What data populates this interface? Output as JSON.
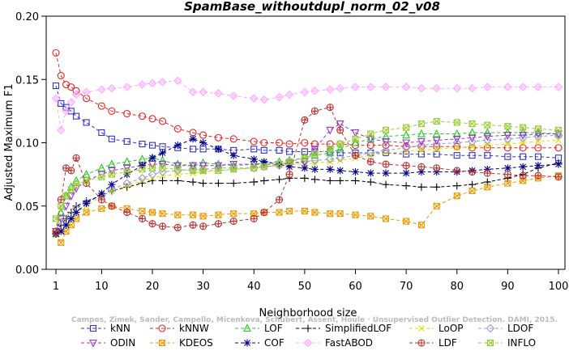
{
  "chart_data": {
    "type": "line",
    "title": "SpamBase_withoutdupl_norm_02_v08",
    "xlabel": "Neighborhood size",
    "ylabel": "Adjusted Maximum F1",
    "xlim": [
      1,
      100
    ],
    "ylim": [
      0,
      0.2
    ],
    "x_ticks": [
      1,
      10,
      20,
      30,
      40,
      50,
      60,
      70,
      80,
      90,
      100
    ],
    "y_ticks": [
      "0.00",
      "0.05",
      "0.10",
      "0.15",
      "0.20"
    ],
    "grid": false,
    "legend_position": "bottom",
    "watermark": "Campos, Zimek, Sander, Campello, Micenkova, Schubert, Assent, Houle · Unsupervised Outlier Detection. DAMI, 2015.",
    "x_samples": [
      1,
      2,
      3,
      4,
      5,
      7,
      10,
      12,
      15,
      18,
      20,
      22,
      25,
      28,
      30,
      33,
      36,
      40,
      42,
      45,
      47,
      50,
      52,
      55,
      57,
      60,
      63,
      66,
      70,
      73,
      76,
      80,
      83,
      86,
      90,
      93,
      96,
      100
    ],
    "series": [
      {
        "name": "kNN",
        "color": "#3333cc",
        "marker": "square",
        "values": [
          0.145,
          0.131,
          0.128,
          0.125,
          0.121,
          0.116,
          0.108,
          0.103,
          0.101,
          0.099,
          0.098,
          0.097,
          0.096,
          0.095,
          0.095,
          0.095,
          0.094,
          0.095,
          0.094,
          0.094,
          0.093,
          0.093,
          0.093,
          0.093,
          0.092,
          0.092,
          0.092,
          0.092,
          0.091,
          0.091,
          0.091,
          0.09,
          0.09,
          0.09,
          0.089,
          0.089,
          0.089,
          0.088
        ]
      },
      {
        "name": "kNNW",
        "color": "#ee2222",
        "marker": "circle",
        "values": [
          0.171,
          0.153,
          0.146,
          0.144,
          0.141,
          0.135,
          0.129,
          0.125,
          0.123,
          0.121,
          0.119,
          0.117,
          0.111,
          0.108,
          0.106,
          0.104,
          0.103,
          0.101,
          0.1,
          0.1,
          0.099,
          0.1,
          0.099,
          0.099,
          0.099,
          0.098,
          0.098,
          0.098,
          0.097,
          0.097,
          0.097,
          0.097,
          0.096,
          0.096,
          0.096,
          0.096,
          0.096,
          0.096
        ]
      },
      {
        "name": "LOF",
        "color": "#22cc22",
        "marker": "triangle-up",
        "values": [
          0.028,
          0.045,
          0.058,
          0.065,
          0.07,
          0.075,
          0.08,
          0.083,
          0.085,
          0.087,
          0.088,
          0.086,
          0.083,
          0.082,
          0.084,
          0.083,
          0.082,
          0.083,
          0.084,
          0.085,
          0.086,
          0.088,
          0.09,
          0.092,
          0.095,
          0.1,
          0.103,
          0.105,
          0.106,
          0.107,
          0.107,
          0.107,
          0.108,
          0.108,
          0.108,
          0.108,
          0.108,
          0.107
        ]
      },
      {
        "name": "SimplifiedLOF",
        "color": "#000000",
        "marker": "plus",
        "values": [
          0.03,
          0.035,
          0.04,
          0.045,
          0.05,
          0.054,
          0.058,
          0.062,
          0.065,
          0.068,
          0.07,
          0.07,
          0.07,
          0.069,
          0.068,
          0.068,
          0.068,
          0.069,
          0.07,
          0.071,
          0.072,
          0.072,
          0.071,
          0.07,
          0.07,
          0.07,
          0.069,
          0.067,
          0.066,
          0.065,
          0.065,
          0.066,
          0.067,
          0.069,
          0.072,
          0.075,
          0.08,
          0.084
        ]
      },
      {
        "name": "LoOP",
        "color": "#dddd00",
        "marker": "x",
        "values": [
          0.028,
          0.03,
          0.035,
          0.04,
          0.045,
          0.05,
          0.058,
          0.062,
          0.066,
          0.07,
          0.072,
          0.074,
          0.075,
          0.076,
          0.077,
          0.078,
          0.079,
          0.08,
          0.081,
          0.082,
          0.083,
          0.083,
          0.084,
          0.085,
          0.086,
          0.088,
          0.09,
          0.092,
          0.093,
          0.094,
          0.095,
          0.096,
          0.097,
          0.098,
          0.099,
          0.1,
          0.101,
          0.102
        ]
      },
      {
        "name": "LDOF",
        "color": "#9999dd",
        "marker": "diamond",
        "values": [
          0.028,
          0.033,
          0.038,
          0.043,
          0.048,
          0.053,
          0.058,
          0.063,
          0.068,
          0.072,
          0.075,
          0.077,
          0.078,
          0.079,
          0.079,
          0.08,
          0.08,
          0.08,
          0.081,
          0.082,
          0.083,
          0.085,
          0.086,
          0.087,
          0.088,
          0.09,
          0.092,
          0.094,
          0.096,
          0.098,
          0.099,
          0.1,
          0.101,
          0.102,
          0.103,
          0.104,
          0.105,
          0.106
        ]
      },
      {
        "name": "ODIN",
        "color": "#9933cc",
        "marker": "triangle-down",
        "values": [
          0.03,
          0.04,
          0.05,
          0.058,
          0.064,
          0.07,
          0.075,
          0.078,
          0.08,
          0.082,
          0.083,
          0.083,
          0.082,
          0.082,
          0.082,
          0.082,
          0.083,
          0.083,
          0.083,
          0.083,
          0.084,
          0.085,
          0.095,
          0.11,
          0.115,
          0.108,
          0.103,
          0.101,
          0.1,
          0.101,
          0.102,
          0.103,
          0.104,
          0.105,
          0.106,
          0.106,
          0.107,
          0.107
        ]
      },
      {
        "name": "KDEOS",
        "color": "#ee9900",
        "marker": "square-x",
        "values": [
          0.028,
          0.021,
          0.03,
          0.035,
          0.04,
          0.045,
          0.048,
          0.05,
          0.048,
          0.046,
          0.045,
          0.044,
          0.043,
          0.043,
          0.042,
          0.043,
          0.044,
          0.044,
          0.045,
          0.045,
          0.046,
          0.046,
          0.045,
          0.044,
          0.044,
          0.043,
          0.042,
          0.04,
          0.038,
          0.035,
          0.05,
          0.058,
          0.062,
          0.065,
          0.068,
          0.07,
          0.072,
          0.074
        ]
      },
      {
        "name": "COF",
        "color": "#000088",
        "marker": "star",
        "values": [
          0.028,
          0.03,
          0.035,
          0.04,
          0.045,
          0.052,
          0.06,
          0.067,
          0.075,
          0.082,
          0.088,
          0.092,
          0.098,
          0.103,
          0.1,
          0.095,
          0.09,
          0.087,
          0.085,
          0.083,
          0.081,
          0.08,
          0.079,
          0.079,
          0.078,
          0.077,
          0.076,
          0.076,
          0.076,
          0.077,
          0.077,
          0.077,
          0.078,
          0.079,
          0.08,
          0.081,
          0.082,
          0.083
        ]
      },
      {
        "name": "FastABOD",
        "color": "#ffaaff",
        "marker": "diamond-filled",
        "values": [
          0.135,
          0.11,
          0.125,
          0.132,
          0.138,
          0.14,
          0.142,
          0.143,
          0.144,
          0.146,
          0.147,
          0.148,
          0.149,
          0.14,
          0.14,
          0.139,
          0.137,
          0.135,
          0.134,
          0.136,
          0.138,
          0.14,
          0.141,
          0.142,
          0.143,
          0.144,
          0.144,
          0.144,
          0.144,
          0.143,
          0.143,
          0.143,
          0.143,
          0.144,
          0.144,
          0.144,
          0.144,
          0.144
        ]
      },
      {
        "name": "LDF",
        "color": "#bb3333",
        "marker": "circle-plus",
        "values": [
          0.03,
          0.055,
          0.08,
          0.078,
          0.088,
          0.068,
          0.055,
          0.05,
          0.045,
          0.04,
          0.036,
          0.034,
          0.033,
          0.035,
          0.034,
          0.036,
          0.038,
          0.04,
          0.045,
          0.055,
          0.075,
          0.118,
          0.125,
          0.128,
          0.11,
          0.09,
          0.085,
          0.083,
          0.082,
          0.081,
          0.08,
          0.078,
          0.077,
          0.076,
          0.075,
          0.074,
          0.074,
          0.073
        ]
      },
      {
        "name": "INFLO",
        "color": "#99cc33",
        "marker": "hourglass",
        "values": [
          0.04,
          0.05,
          0.058,
          0.063,
          0.067,
          0.07,
          0.073,
          0.075,
          0.077,
          0.079,
          0.08,
          0.08,
          0.079,
          0.078,
          0.078,
          0.078,
          0.079,
          0.08,
          0.081,
          0.083,
          0.085,
          0.088,
          0.091,
          0.095,
          0.099,
          0.103,
          0.107,
          0.11,
          0.112,
          0.115,
          0.117,
          0.116,
          0.115,
          0.114,
          0.113,
          0.112,
          0.111,
          0.11
        ]
      }
    ]
  }
}
